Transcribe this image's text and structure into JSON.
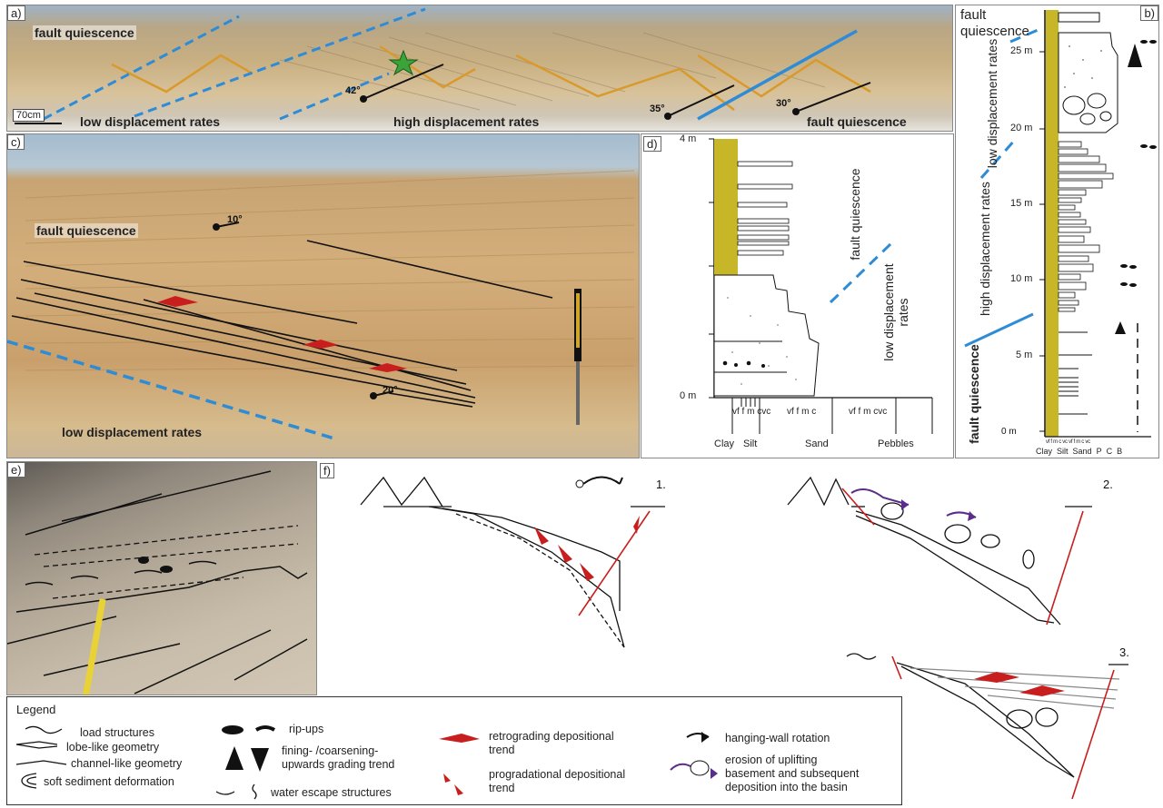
{
  "panels": {
    "a": {
      "label": "a)",
      "top_left": "fault quiescence",
      "bottom_left": "low displacement rates",
      "bottom_mid": "high displacement rates",
      "bottom_right": "fault quiescence",
      "scale": "70cm",
      "dips": [
        "42°",
        "35°",
        "30°"
      ]
    },
    "b": {
      "label": "b)",
      "title_top": "fault quiescence",
      "zone1": "low displacement rates",
      "zone2": "high displacement rates",
      "zone3": "fault quiescence",
      "ticks": [
        "25 m",
        "20 m",
        "15 m",
        "10 m",
        "5 m",
        "0 m"
      ],
      "axis": [
        "Clay",
        "Silt",
        "Sand",
        "P",
        "C",
        "B"
      ],
      "subaxis": "vf f m c vc vf f m c vc"
    },
    "c": {
      "label": "c)",
      "top": "fault quiescence",
      "bottom": "low displacement rates",
      "dips": [
        "10°",
        "20°"
      ]
    },
    "d": {
      "label": "d)",
      "ticks": [
        "4 m",
        "0 m"
      ],
      "upper": "fault quiescence",
      "lower": "low displacement rates",
      "axis": [
        "Clay",
        "Silt",
        "Sand",
        "Pebbles"
      ],
      "sub_sand": "vf  f  m  c",
      "sub_silt": "vf  f  m  cvc",
      "sub_peb": "vf f m  cvc"
    },
    "e": {
      "label": "e)"
    },
    "f": {
      "label": "f)",
      "steps": [
        "1.",
        "2.",
        "3."
      ]
    }
  },
  "legend": {
    "title": "Legend",
    "items": {
      "load": "load structures",
      "lobe": "lobe-like geometry",
      "channel": "channel-like geometry",
      "soft": "soft sediment deformation",
      "ripups": "rip-ups",
      "grading": "fining- /coarsening-\nupwards grading trend",
      "water": "water escape structures",
      "retro": "retrograding depositional\ntrend",
      "progr": "progradational depositional\ntrend",
      "hwr": "hanging-wall rotation",
      "erosion": "erosion of uplifting\nbasement and subsequent\ndeposition into the basin"
    }
  },
  "colors": {
    "fault_blue": "#2e8bd6",
    "orange_line": "#d99a2b",
    "red_arrow": "#c81e1e",
    "purple_arrow": "#5a2d8a",
    "yellow_fill": "#c8b629",
    "outcrop": "#cdb58a"
  }
}
